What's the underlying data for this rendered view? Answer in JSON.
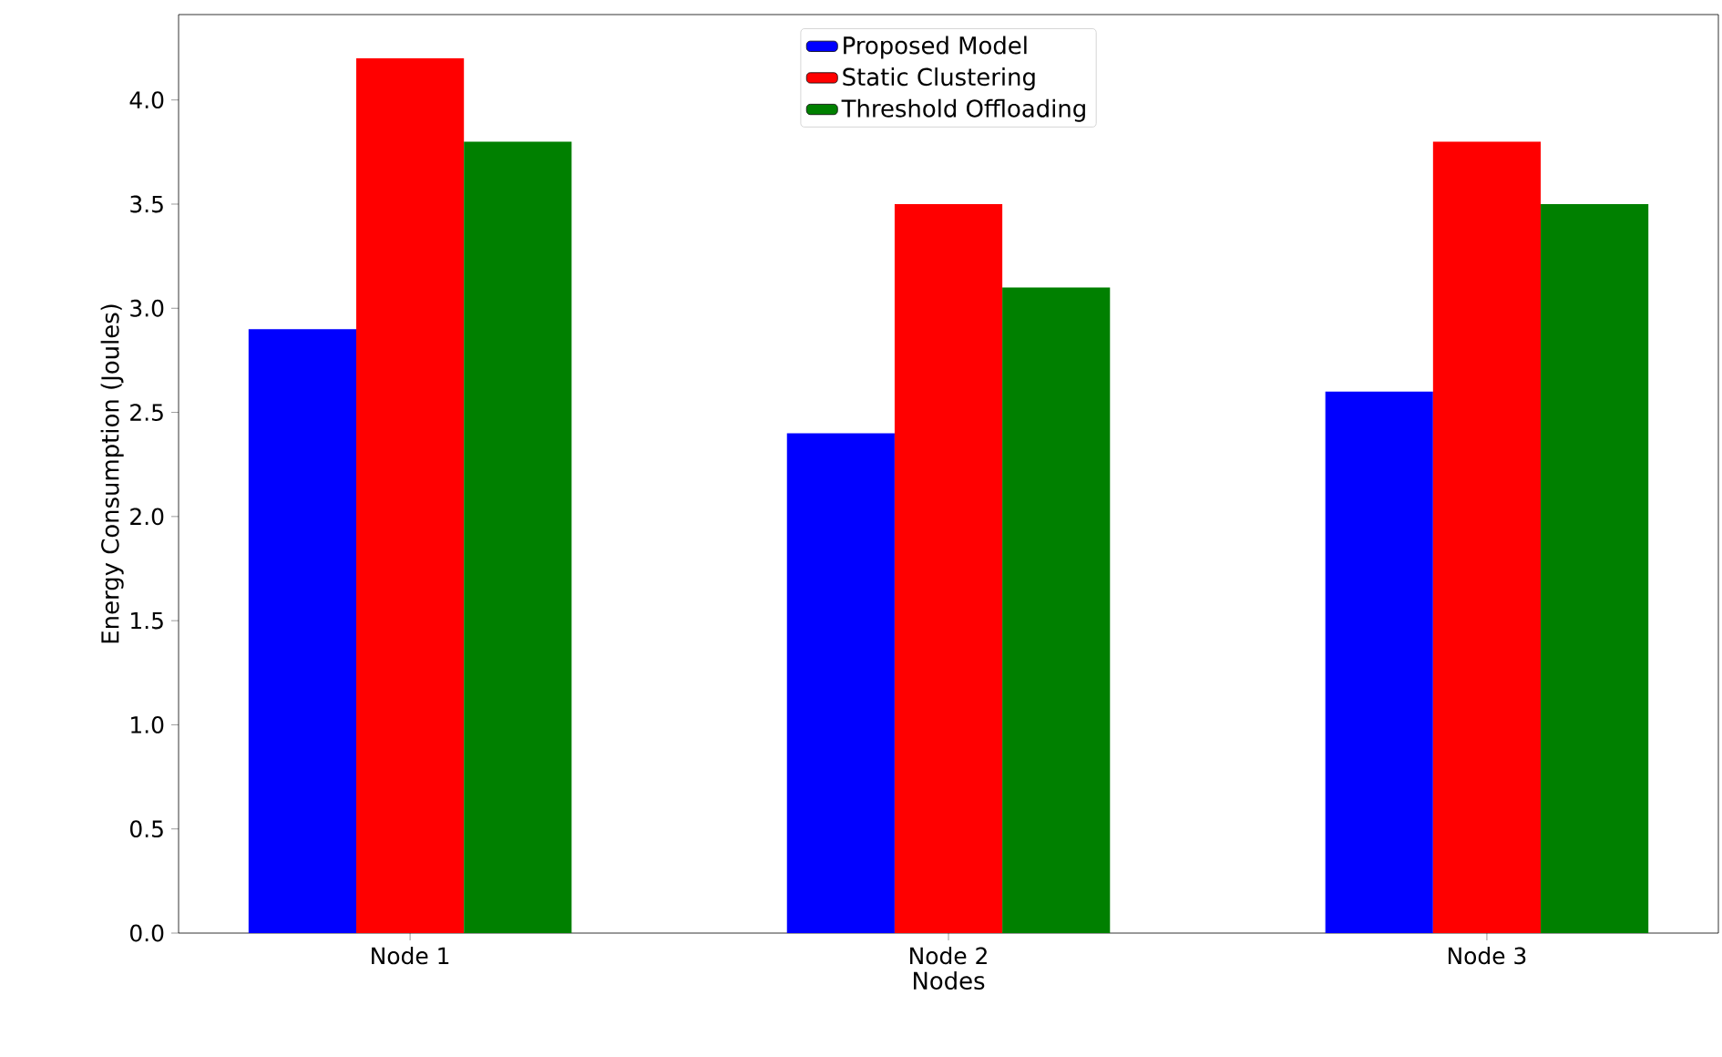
{
  "chart_data": {
    "type": "bar",
    "xlabel": "Nodes",
    "ylabel": "Energy Consumption (Joules)",
    "categories": [
      "Node 1",
      "Node 2",
      "Node 3"
    ],
    "series": [
      {
        "name": "Proposed Model",
        "color": "#0000ff",
        "values": [
          2.9,
          2.4,
          2.6
        ]
      },
      {
        "name": "Static Clustering",
        "color": "#ff0000",
        "values": [
          4.2,
          3.5,
          3.8
        ]
      },
      {
        "name": "Threshold Offloading",
        "color": "#008000",
        "values": [
          3.8,
          3.1,
          3.5
        ]
      }
    ],
    "ylim": [
      0,
      4.41
    ],
    "yticks": [
      {
        "value": 0,
        "label": "0.0"
      },
      {
        "value": 0.5,
        "label": "0.5"
      },
      {
        "value": 1,
        "label": "1.0"
      },
      {
        "value": 1.5,
        "label": "1.5"
      },
      {
        "value": 2,
        "label": "2.0"
      },
      {
        "value": 2.5,
        "label": "2.5"
      },
      {
        "value": 3,
        "label": "3.0"
      },
      {
        "value": 3.5,
        "label": "3.5"
      },
      {
        "value": 4,
        "label": "4.0"
      }
    ],
    "legend": "top",
    "grid": false
  }
}
